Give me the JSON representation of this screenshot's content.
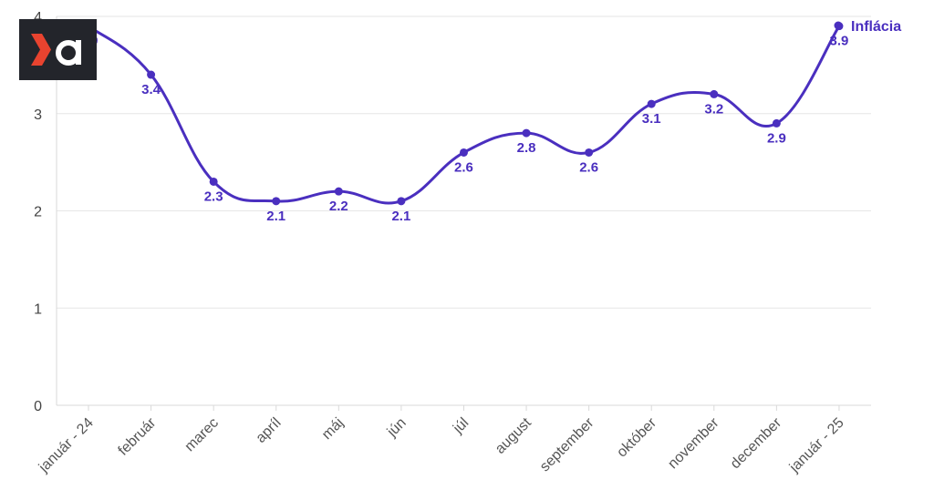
{
  "chart_data": {
    "type": "line",
    "categories": [
      "január - 24",
      "február",
      "marec",
      "apríl",
      "máj",
      "jún",
      "júl",
      "august",
      "september",
      "október",
      "november",
      "december",
      "január - 25"
    ],
    "series": [
      {
        "name": "Inflácia",
        "values": [
          3.9,
          3.4,
          2.3,
          2.1,
          2.2,
          2.1,
          2.6,
          2.8,
          2.6,
          3.1,
          3.2,
          2.9,
          3.9
        ]
      }
    ],
    "ylim": [
      0,
      4
    ],
    "yticks": [
      0,
      1,
      2,
      3,
      4
    ],
    "grid": true,
    "legend": "top-right",
    "line_color": "#4a2fbf",
    "logo_color": "#23252b",
    "logo_accent": "#e8432f"
  }
}
